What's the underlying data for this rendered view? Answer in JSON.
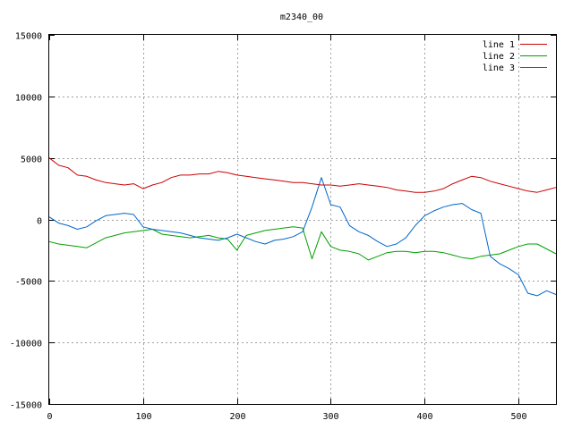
{
  "chart_data": {
    "type": "line",
    "title": "m2340_00",
    "xlabel": "",
    "ylabel": "",
    "xlim": [
      0,
      540
    ],
    "ylim": [
      -15000,
      15000
    ],
    "x_ticks": [
      0,
      100,
      200,
      300,
      400,
      500
    ],
    "y_ticks": [
      -15000,
      -10000,
      -5000,
      0,
      5000,
      10000,
      15000
    ],
    "grid": true,
    "legend_position": "top-right",
    "x": [
      0,
      10,
      20,
      30,
      40,
      50,
      60,
      70,
      80,
      90,
      100,
      110,
      120,
      130,
      140,
      150,
      160,
      170,
      180,
      190,
      200,
      210,
      220,
      230,
      240,
      250,
      260,
      270,
      280,
      290,
      300,
      310,
      320,
      330,
      340,
      350,
      360,
      370,
      380,
      390,
      400,
      410,
      420,
      430,
      440,
      450,
      460,
      470,
      480,
      490,
      500,
      510,
      520,
      530,
      540
    ],
    "series": [
      {
        "name": "line 1",
        "color": "#cc0000",
        "values": [
          5000,
          4400,
          4200,
          3600,
          3500,
          3200,
          3000,
          2900,
          2800,
          2900,
          2500,
          2800,
          3000,
          3400,
          3600,
          3600,
          3700,
          3700,
          3900,
          3800,
          3600,
          3500,
          3400,
          3300,
          3200,
          3100,
          3000,
          3000,
          2900,
          2800,
          2800,
          2700,
          2800,
          2900,
          2800,
          2700,
          2600,
          2400,
          2300,
          2200,
          2200,
          2300,
          2500,
          2900,
          3200,
          3500,
          3400,
          3100,
          2900,
          2700,
          2500,
          2300,
          2200,
          2400,
          2600
        ]
      },
      {
        "name": "line 2",
        "color": "#00a000",
        "values": [
          -1800,
          -2000,
          -2100,
          -2200,
          -2300,
          -1900,
          -1500,
          -1300,
          -1100,
          -1000,
          -900,
          -800,
          -1200,
          -1300,
          -1400,
          -1500,
          -1400,
          -1300,
          -1500,
          -1600,
          -2500,
          -1300,
          -1100,
          -900,
          -800,
          -700,
          -600,
          -700,
          -3200,
          -1000,
          -2200,
          -2500,
          -2600,
          -2800,
          -3300,
          -3000,
          -2700,
          -2600,
          -2600,
          -2700,
          -2600,
          -2600,
          -2700,
          -2900,
          -3100,
          -3200,
          -3000,
          -2900,
          -2800,
          -2500,
          -2200,
          -2000,
          -2000,
          -2400,
          -2800
        ]
      },
      {
        "name": "line 3",
        "color": "#0066cc",
        "values": [
          200,
          -300,
          -500,
          -800,
          -600,
          -100,
          300,
          400,
          500,
          400,
          -600,
          -800,
          -900,
          -1000,
          -1100,
          -1300,
          -1500,
          -1600,
          -1700,
          -1500,
          -1200,
          -1500,
          -1800,
          -2000,
          -1700,
          -1600,
          -1400,
          -1000,
          1000,
          3400,
          1200,
          1000,
          -500,
          -1000,
          -1300,
          -1800,
          -2200,
          -2000,
          -1500,
          -500,
          300,
          700,
          1000,
          1200,
          1300,
          800,
          500,
          -3000,
          -3600,
          -4000,
          -4500,
          -6000,
          -6200,
          -5800,
          -6100
        ]
      }
    ]
  }
}
